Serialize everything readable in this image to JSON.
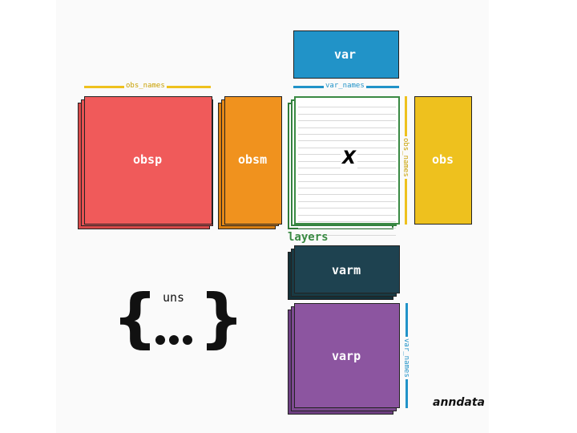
{
  "labels": {
    "var": "var",
    "var_names_top": "var_names",
    "obs_names_top": "obs_names",
    "obsp": "obsp",
    "obsm": "obsm",
    "x": "X",
    "obs_names_side": "obs_names",
    "obs": "obs",
    "layers": "layers",
    "varm": "varm",
    "uns": "uns",
    "varp": "varp",
    "var_names_side": "var_names",
    "brand": "anndata"
  },
  "colors": {
    "obsp": "#f05a5a",
    "obsm": "#f0921e",
    "obs": "#eec11e",
    "var": "#2193c8",
    "x_border": "#3a8a43",
    "layers": "#3a8a43",
    "varm": "#1e4250",
    "varp": "#8c55a0",
    "obs_names_bar": "#eec11e",
    "var_names_bar": "#2193c8"
  }
}
